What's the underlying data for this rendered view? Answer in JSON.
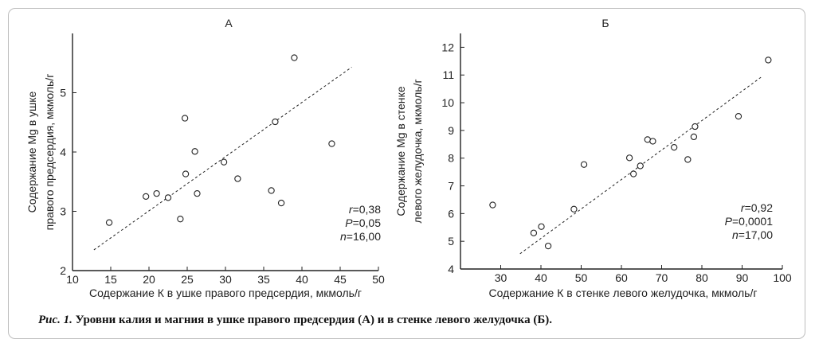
{
  "chart_data": [
    {
      "type": "scatter",
      "title": "А",
      "xlabel": "Содержание К в ушке правого предсердия, мкмоль/г",
      "ylabel": [
        "Содержание Mg  в ушке",
        "правого предсердия, мкмоль/г"
      ],
      "xlim": [
        10,
        50
      ],
      "ylim": [
        2,
        6
      ],
      "xticks": [
        10,
        15,
        20,
        25,
        30,
        35,
        40,
        45,
        50
      ],
      "yticks": [
        2,
        3,
        4,
        5
      ],
      "grid": false,
      "x": [
        14.8,
        19.6,
        21.0,
        22.5,
        24.1,
        24.7,
        24.8,
        26.0,
        26.3,
        29.8,
        31.6,
        36.0,
        36.5,
        37.3,
        39.0,
        43.9
      ],
      "y": [
        2.81,
        3.25,
        3.3,
        3.23,
        2.87,
        4.57,
        3.63,
        4.01,
        3.3,
        3.83,
        3.55,
        3.35,
        4.51,
        3.14,
        5.59,
        4.14
      ],
      "trend": {
        "x": [
          12.8,
          46.5
        ],
        "y": [
          2.35,
          5.43
        ]
      },
      "stats": [
        {
          "label": "r",
          "value": "=0,38"
        },
        {
          "label": "P",
          "value": "=0,05"
        },
        {
          "label": "n",
          "value": "=16,00"
        }
      ]
    },
    {
      "type": "scatter",
      "title": "Б",
      "xlabel": "Содержание К в стенке левого желудочка, мкмоль/г",
      "ylabel": [
        "Содержание Mg  в стенке",
        "левого желудочка, мкмоль/г"
      ],
      "xlim": [
        20,
        100
      ],
      "ylim": [
        4,
        12.5
      ],
      "xticks": [
        30,
        40,
        50,
        60,
        70,
        80,
        90,
        100
      ],
      "yticks": [
        4,
        5,
        6,
        7,
        8,
        9,
        10,
        11,
        12
      ],
      "grid": false,
      "x": [
        28.0,
        38.2,
        40.1,
        41.8,
        48.2,
        50.7,
        62.0,
        63.0,
        64.7,
        66.5,
        67.8,
        73.1,
        76.5,
        78.0,
        78.3,
        89.1,
        96.5
      ],
      "y": [
        6.31,
        5.3,
        5.53,
        4.83,
        6.16,
        7.77,
        8.01,
        7.43,
        7.72,
        8.67,
        8.61,
        8.39,
        7.95,
        8.77,
        9.14,
        9.51,
        11.54
      ],
      "trend": {
        "x": [
          34.8,
          95.0
        ],
        "y": [
          4.55,
          10.95
        ]
      },
      "stats": [
        {
          "label": "r",
          "value": "=0,92"
        },
        {
          "label": "P",
          "value": "=0,0001"
        },
        {
          "label": "n",
          "value": "=17,00"
        }
      ]
    }
  ],
  "caption": {
    "prefix": "Рис. 1.",
    "text": " Уровни калия и магния в ушке правого предсердия (А) и в стенке левого желудочка (Б)."
  }
}
